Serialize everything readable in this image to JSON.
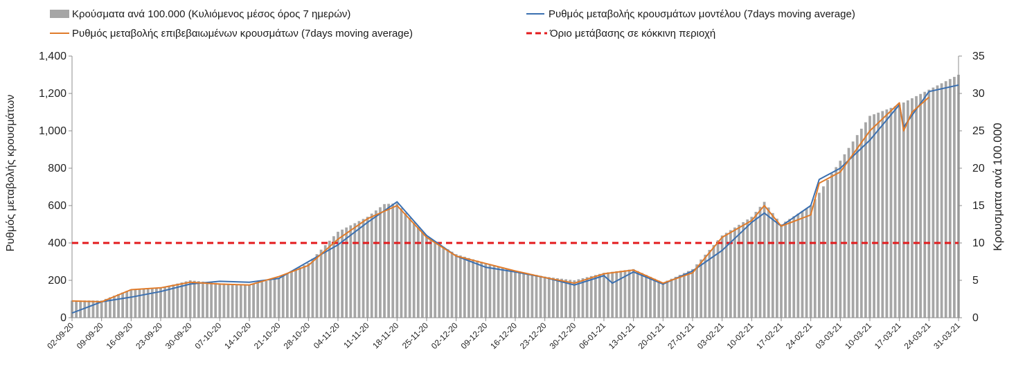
{
  "chart_data": {
    "type": "bar+line",
    "title": "",
    "legend": {
      "placement": "top",
      "entries": [
        "Κρούσματα ανά 100.000 (Κυλιόμενος μέσος όρος 7 ημερών)",
        "Ρυθμός μεταβολής κρουσμάτων μοντέλου (7days moving average)",
        "Ρυθμός μεταβολής επιβεβαιωμένων κρουσμάτων (7days moving average)",
        "Όριο μετάβασης σε κόκκινη περιοχή"
      ]
    },
    "y_left": {
      "label": "Ρυθμός μεταβολής κρουσμάτων",
      "range": [
        0,
        1400
      ],
      "ticks": [
        0,
        200,
        400,
        600,
        800,
        1000,
        1200,
        1400
      ],
      "tick_labels": [
        "0",
        "200",
        "400",
        "600",
        "800",
        "1,000",
        "1,200",
        "1,400"
      ]
    },
    "y_right": {
      "label": "Κρουσματα ανά 100.000",
      "range": [
        0,
        35
      ],
      "ticks": [
        0,
        5,
        10,
        15,
        20,
        25,
        30,
        35
      ],
      "tick_labels": [
        "0",
        "5",
        "10",
        "15",
        "20",
        "25",
        "30",
        "35"
      ]
    },
    "x_tick_labels": [
      "02-09-20",
      "09-09-20",
      "16-09-20",
      "23-09-20",
      "30-09-20",
      "07-10-20",
      "14-10-20",
      "21-10-20",
      "28-10-20",
      "04-11-20",
      "11-11-20",
      "18-11-20",
      "25-11-20",
      "02-12-20",
      "09-12-20",
      "16-12-20",
      "23-12-20",
      "30-12-20",
      "06-01-21",
      "13-01-21",
      "20-01-21",
      "27-01-21",
      "03-02-21",
      "10-02-21",
      "17-02-21",
      "24-02-21",
      "03-03-21",
      "10-03-21",
      "17-03-21",
      "24-03-21",
      "31-03-21"
    ],
    "x_start": "02-09-20",
    "x_end": "31-03-21",
    "threshold": {
      "value": 400,
      "axis": "left"
    },
    "bars_key": [
      [
        "02-09-20",
        2.3
      ],
      [
        "09-09-20",
        2.3
      ],
      [
        "16-09-20",
        3.8
      ],
      [
        "23-09-20",
        4.0
      ],
      [
        "30-09-20",
        5.0
      ],
      [
        "07-10-20",
        4.6
      ],
      [
        "14-10-20",
        4.4
      ],
      [
        "21-10-20",
        5.3
      ],
      [
        "28-10-20",
        7.3
      ],
      [
        "04-11-20",
        11.5
      ],
      [
        "11-11-20",
        13.5
      ],
      [
        "15-11-20",
        15.2
      ],
      [
        "18-11-20",
        15.3
      ],
      [
        "25-11-20",
        10.8
      ],
      [
        "02-12-20",
        8.5
      ],
      [
        "09-12-20",
        7.3
      ],
      [
        "16-12-20",
        6.3
      ],
      [
        "23-12-20",
        5.5
      ],
      [
        "30-12-20",
        5.0
      ],
      [
        "06-01-21",
        6.0
      ],
      [
        "13-01-21",
        6.5
      ],
      [
        "20-01-21",
        4.7
      ],
      [
        "27-01-21",
        6.5
      ],
      [
        "03-02-21",
        11.0
      ],
      [
        "10-02-21",
        13.5
      ],
      [
        "13-02-21",
        15.5
      ],
      [
        "17-02-21",
        12.5
      ],
      [
        "24-02-21",
        15.0
      ],
      [
        "03-03-21",
        21.0
      ],
      [
        "10-03-21",
        27.0
      ],
      [
        "17-03-21",
        28.5
      ],
      [
        "24-03-21",
        30.5
      ],
      [
        "31-03-21",
        32.5
      ]
    ],
    "series": [
      {
        "name": "Ρυθμός μεταβολής κρουσμάτων μοντέλου (7days moving average)",
        "color": "#3a6fb0",
        "points": [
          [
            "02-09-20",
            25
          ],
          [
            "09-09-20",
            85
          ],
          [
            "16-09-20",
            110
          ],
          [
            "23-09-20",
            140
          ],
          [
            "30-09-20",
            180
          ],
          [
            "07-10-20",
            195
          ],
          [
            "14-10-20",
            190
          ],
          [
            "21-10-20",
            210
          ],
          [
            "28-10-20",
            300
          ],
          [
            "04-11-20",
            390
          ],
          [
            "11-11-20",
            510
          ],
          [
            "18-11-20",
            620
          ],
          [
            "25-11-20",
            440
          ],
          [
            "02-12-20",
            330
          ],
          [
            "09-12-20",
            270
          ],
          [
            "16-12-20",
            245
          ],
          [
            "23-12-20",
            215
          ],
          [
            "30-12-20",
            175
          ],
          [
            "06-01-21",
            225
          ],
          [
            "08-01-21",
            185
          ],
          [
            "13-01-21",
            245
          ],
          [
            "20-01-21",
            180
          ],
          [
            "27-01-21",
            250
          ],
          [
            "03-02-21",
            360
          ],
          [
            "10-02-21",
            510
          ],
          [
            "13-02-21",
            560
          ],
          [
            "17-02-21",
            490
          ],
          [
            "24-02-21",
            600
          ],
          [
            "26-02-21",
            740
          ],
          [
            "03-03-21",
            800
          ],
          [
            "10-03-21",
            950
          ],
          [
            "17-03-21",
            1140
          ],
          [
            "18-03-21",
            1020
          ],
          [
            "24-03-21",
            1210
          ],
          [
            "31-03-21",
            1245
          ]
        ]
      },
      {
        "name": "Ρυθμός μεταβολής επιβεβαιωμένων κρουσμάτων (7days moving average)",
        "color": "#e07b2a",
        "points": [
          [
            "02-09-20",
            90
          ],
          [
            "09-09-20",
            85
          ],
          [
            "16-09-20",
            150
          ],
          [
            "23-09-20",
            160
          ],
          [
            "30-09-20",
            190
          ],
          [
            "07-10-20",
            180
          ],
          [
            "14-10-20",
            175
          ],
          [
            "21-10-20",
            220
          ],
          [
            "28-10-20",
            280
          ],
          [
            "04-11-20",
            420
          ],
          [
            "11-11-20",
            530
          ],
          [
            "18-11-20",
            600
          ],
          [
            "25-11-20",
            430
          ],
          [
            "02-12-20",
            330
          ],
          [
            "09-12-20",
            290
          ],
          [
            "16-12-20",
            250
          ],
          [
            "23-12-20",
            215
          ],
          [
            "30-12-20",
            185
          ],
          [
            "06-01-21",
            235
          ],
          [
            "13-01-21",
            255
          ],
          [
            "20-01-21",
            185
          ],
          [
            "27-01-21",
            240
          ],
          [
            "03-02-21",
            430
          ],
          [
            "10-02-21",
            520
          ],
          [
            "13-02-21",
            600
          ],
          [
            "17-02-21",
            490
          ],
          [
            "24-02-21",
            550
          ],
          [
            "26-02-21",
            720
          ],
          [
            "03-03-21",
            780
          ],
          [
            "10-03-21",
            1000
          ],
          [
            "17-03-21",
            1150
          ],
          [
            "18-03-21",
            1000
          ],
          [
            "20-03-21",
            1100
          ],
          [
            "24-03-21",
            1180
          ]
        ]
      }
    ],
    "colors": {
      "bars": "#a6a6a6",
      "model": "#3a6fb0",
      "confirmed": "#e07b2a",
      "threshold": "#e31a1c"
    }
  }
}
